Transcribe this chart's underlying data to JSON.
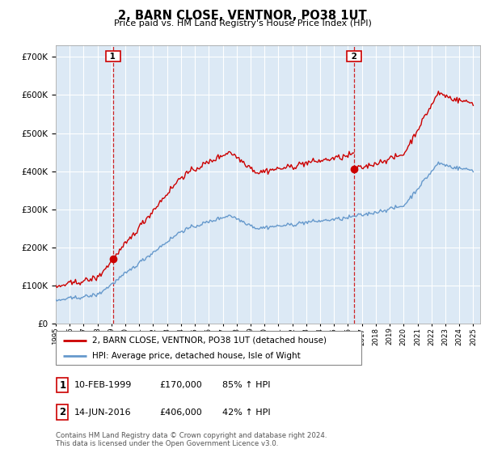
{
  "title": "2, BARN CLOSE, VENTNOR, PO38 1UT",
  "subtitle": "Price paid vs. HM Land Registry's House Price Index (HPI)",
  "ylim": [
    0,
    730000
  ],
  "sale1_date": 1999.11,
  "sale1_price": 170000,
  "sale2_date": 2016.45,
  "sale2_price": 406000,
  "legend_line1": "2, BARN CLOSE, VENTNOR, PO38 1UT (detached house)",
  "legend_line2": "HPI: Average price, detached house, Isle of Wight",
  "table_row1": [
    "1",
    "10-FEB-1999",
    "£170,000",
    "85% ↑ HPI"
  ],
  "table_row2": [
    "2",
    "14-JUN-2016",
    "£406,000",
    "42% ↑ HPI"
  ],
  "footer": "Contains HM Land Registry data © Crown copyright and database right 2024.\nThis data is licensed under the Open Government Licence v3.0.",
  "hpi_color": "#6699cc",
  "price_color": "#cc0000",
  "sale_marker_color": "#cc0000",
  "bg_color": "#dce9f5",
  "xlim_start": 1995.0,
  "xlim_end": 2025.5
}
